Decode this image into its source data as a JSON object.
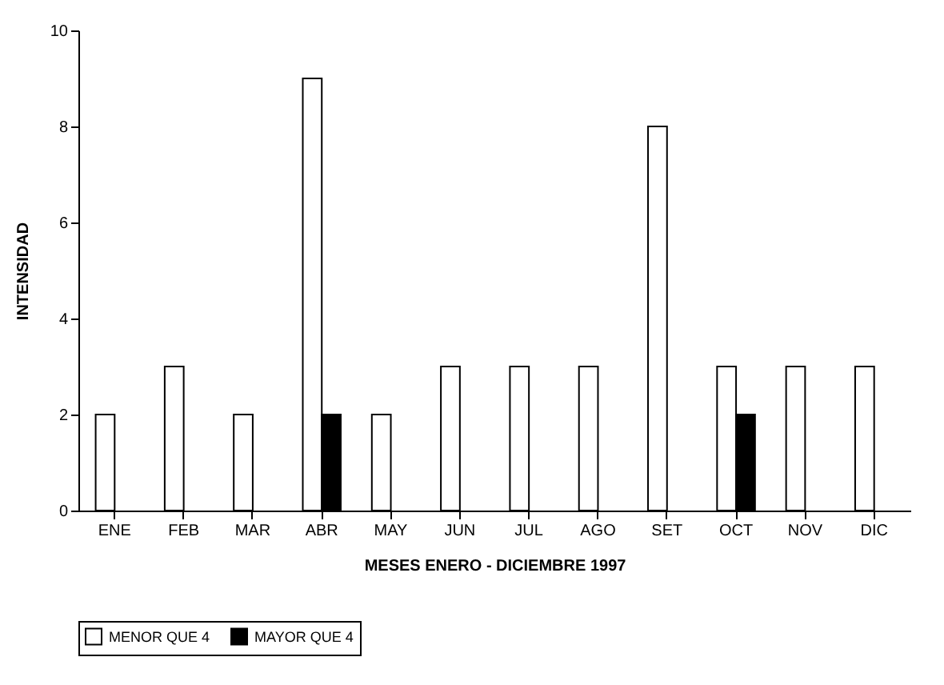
{
  "chart_data": {
    "type": "bar",
    "xlabel": "MESES ENERO - DICIEMBRE 1997",
    "ylabel": "INTENSIDAD",
    "categories": [
      "ENE",
      "FEB",
      "MAR",
      "ABR",
      "MAY",
      "JUN",
      "JUL",
      "AGO",
      "SET",
      "OCT",
      "NOV",
      "DIC"
    ],
    "series": [
      {
        "name": "MENOR QUE 4",
        "color": "#ffffff",
        "values": [
          2,
          3,
          2,
          9,
          2,
          3,
          3,
          3,
          8,
          3,
          3,
          3
        ]
      },
      {
        "name": "MAYOR QUE 4",
        "color": "#000000",
        "values": [
          null,
          null,
          null,
          2,
          null,
          null,
          null,
          null,
          null,
          2,
          null,
          null
        ]
      }
    ],
    "ylim": [
      0,
      10
    ],
    "yticks": [
      0,
      2,
      4,
      6,
      8,
      10
    ],
    "grid": false,
    "legend": "bottom"
  }
}
